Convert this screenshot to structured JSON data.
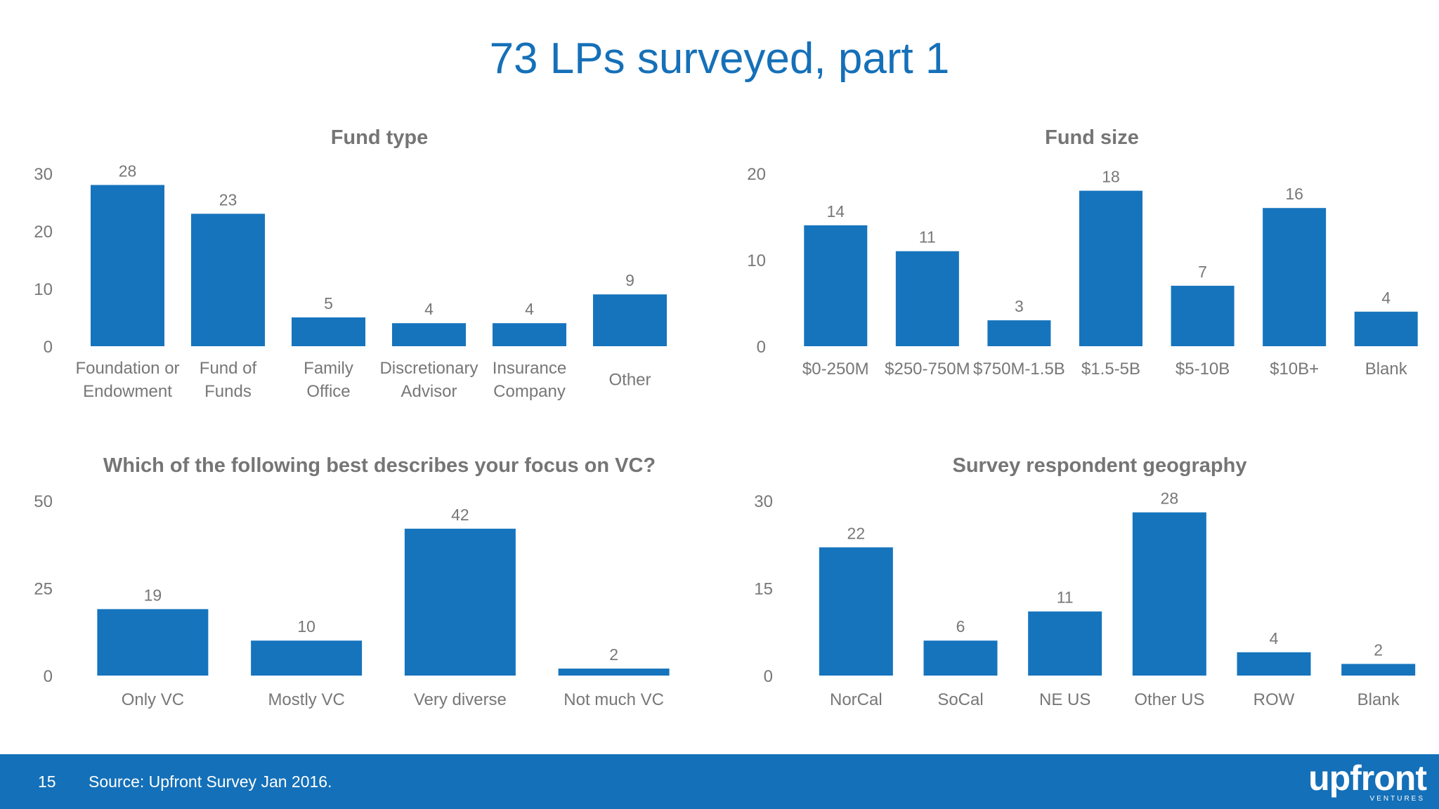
{
  "slide": {
    "title": "73 LPs surveyed, part 1"
  },
  "footer": {
    "page_number": "15",
    "source": "Source: Upfront Survey Jan 2016.",
    "logo_text": "upfront",
    "logo_subtext": "VENTURES"
  },
  "colors": {
    "bar": "#1674bd",
    "title": "#1570b8",
    "footer_bg": "#1470b8"
  },
  "chart_data": [
    {
      "id": "fund-type",
      "type": "bar",
      "title": "Fund type",
      "categories": [
        [
          "Foundation or",
          "Endowment"
        ],
        [
          "Fund of",
          "Funds"
        ],
        [
          "Family",
          "Office"
        ],
        [
          "Discretionary",
          "Advisor"
        ],
        [
          "Insurance",
          "Company"
        ],
        [
          "Other"
        ]
      ],
      "values": [
        28,
        23,
        5,
        4,
        4,
        9
      ],
      "yticks": [
        0,
        10,
        20,
        30
      ],
      "ylim": [
        0,
        30
      ],
      "grid": false
    },
    {
      "id": "fund-size",
      "type": "bar",
      "title": "Fund size",
      "categories": [
        [
          "$0-250M"
        ],
        [
          "$250-750M"
        ],
        [
          "$750M-1.5B"
        ],
        [
          "$1.5-5B"
        ],
        [
          "$5-10B"
        ],
        [
          "$10B+"
        ],
        [
          "Blank"
        ]
      ],
      "values": [
        14,
        11,
        3,
        18,
        7,
        16,
        4
      ],
      "yticks": [
        0,
        10,
        20
      ],
      "ylim": [
        0,
        20
      ],
      "grid": false
    },
    {
      "id": "vc-focus",
      "type": "bar",
      "title": "Which of the following best describes your focus on VC?",
      "categories": [
        [
          "Only VC"
        ],
        [
          "Mostly VC"
        ],
        [
          "Very diverse"
        ],
        [
          "Not much VC"
        ]
      ],
      "values": [
        19,
        10,
        42,
        2
      ],
      "yticks": [
        0,
        25,
        50
      ],
      "ylim": [
        0,
        50
      ],
      "grid": false
    },
    {
      "id": "geography",
      "type": "bar",
      "title": "Survey respondent geography",
      "categories": [
        [
          "NorCal"
        ],
        [
          "SoCal"
        ],
        [
          "NE US"
        ],
        [
          "Other US"
        ],
        [
          "ROW"
        ],
        [
          "Blank"
        ]
      ],
      "values": [
        22,
        6,
        11,
        28,
        4,
        2
      ],
      "yticks": [
        0,
        15,
        30
      ],
      "ylim": [
        0,
        30
      ],
      "grid": false
    }
  ]
}
